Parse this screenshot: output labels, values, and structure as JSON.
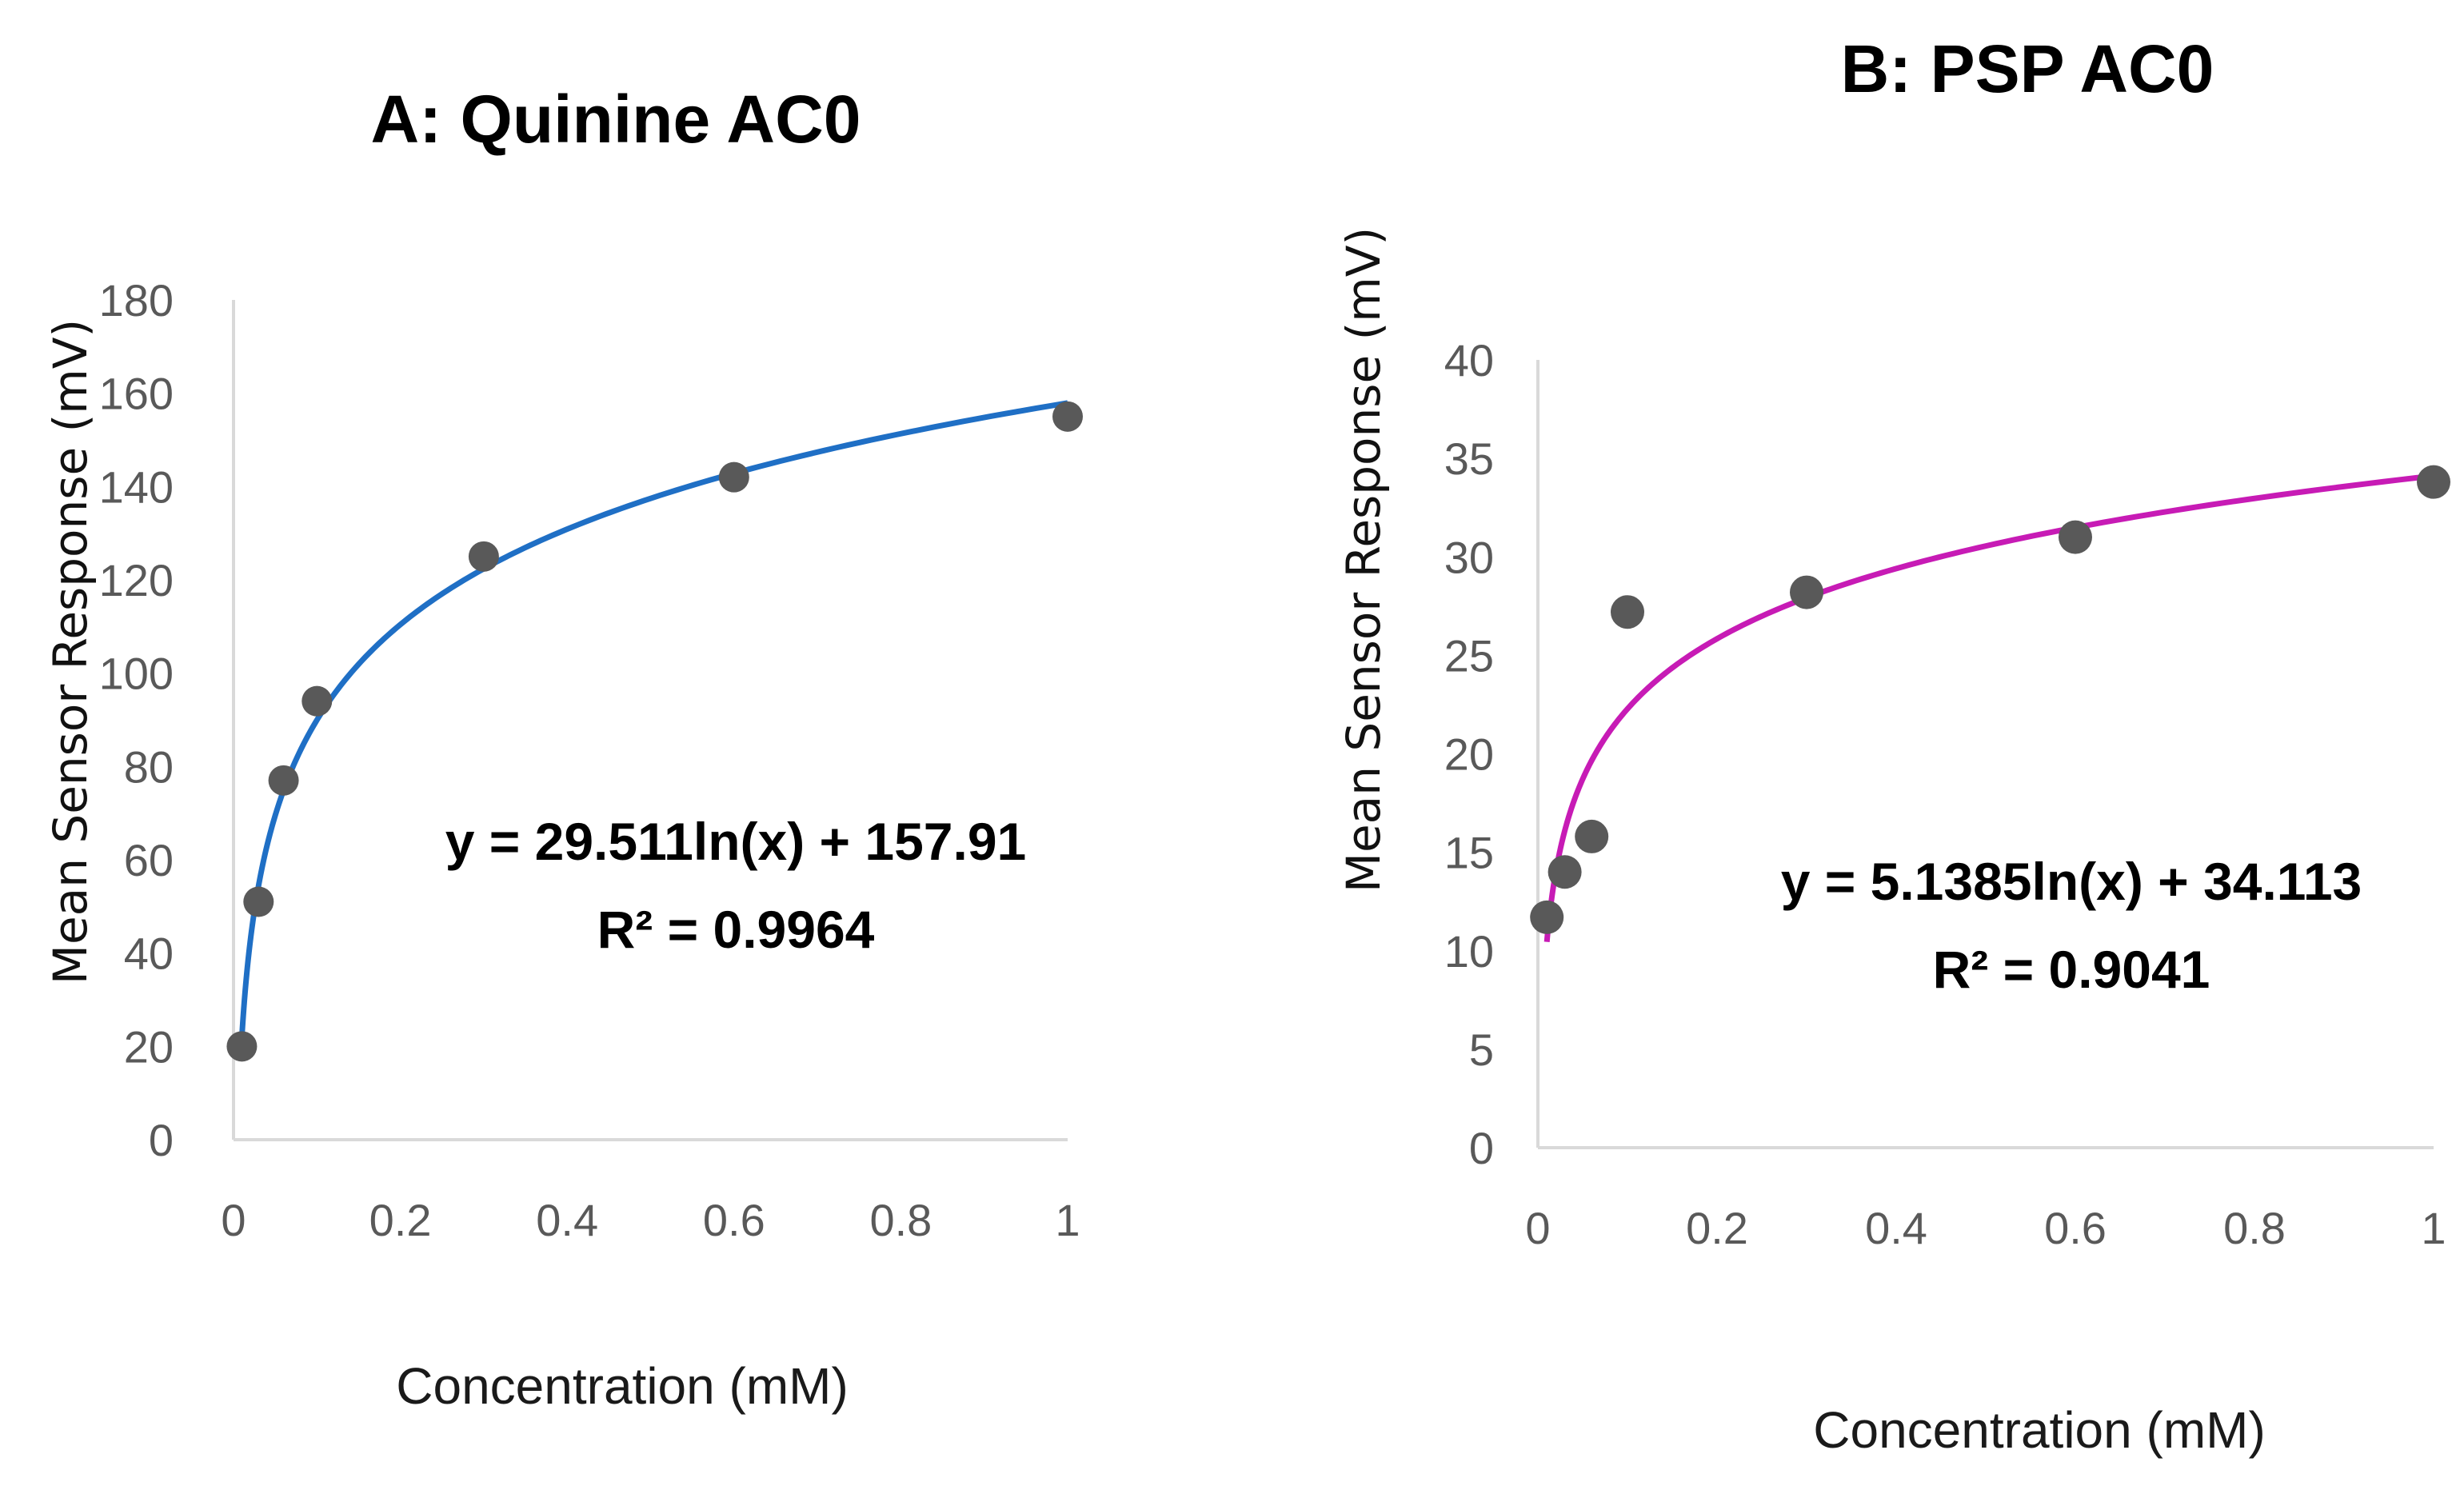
{
  "chart_data": [
    {
      "type": "scatter",
      "title": "A: Quinine AC0",
      "xlabel": "Concentration (mM)",
      "ylabel": "Mean Sensor Response (mV)",
      "xlim": [
        0,
        1
      ],
      "ylim": [
        0,
        180
      ],
      "x_ticks": [
        "0",
        "0.2",
        "0.4",
        "0.6",
        "0.8",
        "1"
      ],
      "y_ticks": [
        "0",
        "20",
        "40",
        "60",
        "80",
        "100",
        "120",
        "140",
        "160",
        "180"
      ],
      "series": [
        {
          "name": "Quinine",
          "x": [
            0.01,
            0.03,
            0.06,
            0.1,
            0.3,
            0.6,
            1.0
          ],
          "y": [
            20,
            51,
            77,
            94,
            125,
            142,
            155
          ]
        }
      ],
      "trendline": {
        "type": "log",
        "a": 29.511,
        "b": 157.91,
        "color": "#1f6fc5"
      },
      "equation": "y = 29.511ln(x) + 157.91",
      "r2": "R² = 0.9964"
    },
    {
      "type": "scatter",
      "title": "B: PSP AC0",
      "xlabel": "Concentration (mM)",
      "ylabel": "Mean Sensor Response (mV)",
      "xlim": [
        0,
        1
      ],
      "ylim": [
        0,
        40
      ],
      "x_ticks": [
        "0",
        "0.2",
        "0.4",
        "0.6",
        "0.8",
        "1"
      ],
      "y_ticks": [
        "0",
        "5",
        "10",
        "15",
        "20",
        "25",
        "30",
        "35",
        "40"
      ],
      "series": [
        {
          "name": "PSP",
          "x": [
            0.01,
            0.03,
            0.06,
            0.1,
            0.3,
            0.6,
            1.0
          ],
          "y": [
            11.7,
            14,
            15.8,
            27.2,
            28.2,
            31,
            33.8
          ]
        }
      ],
      "trendline": {
        "type": "log",
        "a": 5.1385,
        "b": 34.113,
        "color": "#c71bb5"
      },
      "equation": "y = 5.1385ln(x) + 34.113",
      "r2": "R² = 0.9041"
    }
  ],
  "point_color": "#595959"
}
